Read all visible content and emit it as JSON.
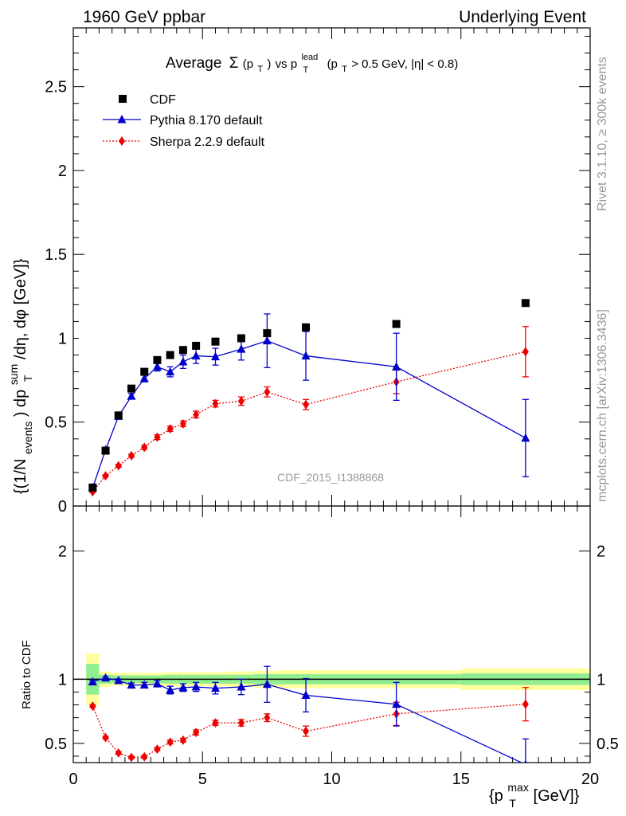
{
  "header": {
    "left": "1960 GeV ppbar",
    "right": "Underlying Event"
  },
  "side_labels": {
    "rivet": "Rivet 3.1.10, ≥ 300k events",
    "mcplots": "mcplots.cern.ch [arXiv:1306.3436]"
  },
  "chart_data": {
    "type": "scatter",
    "title_main": "Average",
    "title_sigma": "Σ",
    "title_pt": "(p",
    "title_pt_sub": "T",
    "title_close": ")",
    "title_vs": " vs ",
    "title_plead": "p",
    "title_plead_sup": "lead",
    "title_plead_sub": "T",
    "title_cut_open": "(p",
    "title_cut_sub": "T",
    "title_cut_rest": " > 0.5 GeV, |η| < 0.8)",
    "watermark": "CDF_2015_I1388868",
    "ylabel_main": "{(1/N",
    "ylabel_events": "events",
    "ylabel_mid": ") dp",
    "ylabel_sup": "sum",
    "ylabel_sub": "T",
    "ylabel_end": "/dη, dφ [GeV]}",
    "ylabel_ratio": "Ratio to CDF",
    "xlabel_open": "{p",
    "xlabel_sup": "max",
    "xlabel_sub": "T",
    "xlabel_end": " [GeV]}",
    "xlim": [
      0,
      20
    ],
    "ylim_main": [
      0,
      2.85
    ],
    "ylim_ratio": [
      0.35,
      2.35
    ],
    "x_ticks": [
      "0",
      "5",
      "10",
      "15",
      "20"
    ],
    "y_ticks_main": [
      "0",
      "0.5",
      "1",
      "1.5",
      "2",
      "2.5"
    ],
    "y_ticks_ratio": [
      "0.5",
      "1",
      "2"
    ],
    "legend": [
      {
        "label": "CDF",
        "color": "#000000",
        "marker": "square"
      },
      {
        "label": "Pythia 8.170 default",
        "color": "#0000cc",
        "marker": "triangle"
      },
      {
        "label": "Sherpa 2.2.9 default",
        "color": "#ee0000",
        "marker": "diamond"
      }
    ],
    "series": [
      {
        "name": "CDF",
        "x": [
          0.75,
          1.25,
          1.75,
          2.25,
          2.75,
          3.25,
          3.75,
          4.25,
          4.75,
          5.5,
          6.5,
          7.5,
          9.0,
          12.5,
          17.5
        ],
        "y": [
          0.11,
          0.33,
          0.54,
          0.7,
          0.8,
          0.87,
          0.9,
          0.93,
          0.955,
          0.98,
          1.0,
          1.03,
          1.065,
          1.085,
          1.21
        ]
      },
      {
        "name": "Pythia 8.170 default",
        "x": [
          0.75,
          1.25,
          1.75,
          2.25,
          2.75,
          3.25,
          3.75,
          4.25,
          4.75,
          5.5,
          6.5,
          7.5,
          9.0,
          12.5,
          17.5
        ],
        "y": [
          0.108,
          0.335,
          0.535,
          0.655,
          0.76,
          0.83,
          0.8,
          0.86,
          0.895,
          0.89,
          0.935,
          0.985,
          0.895,
          0.83,
          0.405
        ],
        "yerr": [
          0.01,
          0.01,
          0.012,
          0.015,
          0.02,
          0.025,
          0.03,
          0.04,
          0.045,
          0.05,
          0.065,
          0.16,
          0.145,
          0.2,
          0.23
        ]
      },
      {
        "name": "Sherpa 2.2.9 default",
        "x": [
          0.75,
          1.25,
          1.75,
          2.25,
          2.75,
          3.25,
          3.75,
          4.25,
          4.75,
          5.5,
          6.5,
          7.5,
          9.0,
          12.5,
          17.5
        ],
        "y": [
          0.085,
          0.18,
          0.24,
          0.3,
          0.35,
          0.41,
          0.46,
          0.49,
          0.545,
          0.61,
          0.625,
          0.68,
          0.605,
          0.74,
          0.92
        ],
        "yerr": [
          0.005,
          0.006,
          0.008,
          0.01,
          0.012,
          0.014,
          0.015,
          0.017,
          0.02,
          0.02,
          0.025,
          0.03,
          0.03,
          0.07,
          0.15
        ]
      }
    ],
    "ratio": {
      "pythia": [
        0.98,
        1.01,
        0.99,
        0.955,
        0.955,
        0.965,
        0.915,
        0.935,
        0.94,
        0.93,
        0.94,
        0.96,
        0.875,
        0.805,
        0.335
      ],
      "pythia_err": [
        0.01,
        0.01,
        0.012,
        0.015,
        0.02,
        0.025,
        0.03,
        0.03,
        0.035,
        0.045,
        0.06,
        0.14,
        0.13,
        0.17,
        0.2
      ],
      "sherpa": [
        0.79,
        0.545,
        0.425,
        0.39,
        0.395,
        0.455,
        0.51,
        0.525,
        0.585,
        0.66,
        0.66,
        0.7,
        0.595,
        0.73,
        0.805
      ],
      "sherpa_err": [
        0.01,
        0.01,
        0.01,
        0.01,
        0.012,
        0.012,
        0.015,
        0.015,
        0.02,
        0.02,
        0.025,
        0.03,
        0.04,
        0.09,
        0.13
      ],
      "band_edges": [
        0.5,
        1.0,
        1.5,
        2.0,
        2.5,
        3.0,
        3.5,
        4.0,
        4.5,
        5.0,
        6.0,
        7.0,
        8.0,
        10.0,
        15.0,
        20.0
      ],
      "band_green": [
        0.12,
        0.035,
        0.03,
        0.03,
        0.03,
        0.03,
        0.035,
        0.035,
        0.035,
        0.035,
        0.035,
        0.04,
        0.04,
        0.04,
        0.045
      ],
      "band_yellow": [
        0.2,
        0.06,
        0.05,
        0.05,
        0.05,
        0.05,
        0.055,
        0.055,
        0.055,
        0.055,
        0.06,
        0.065,
        0.07,
        0.07,
        0.085
      ],
      "color_green": "#90ee90",
      "color_yellow": "#ffff9e"
    }
  }
}
